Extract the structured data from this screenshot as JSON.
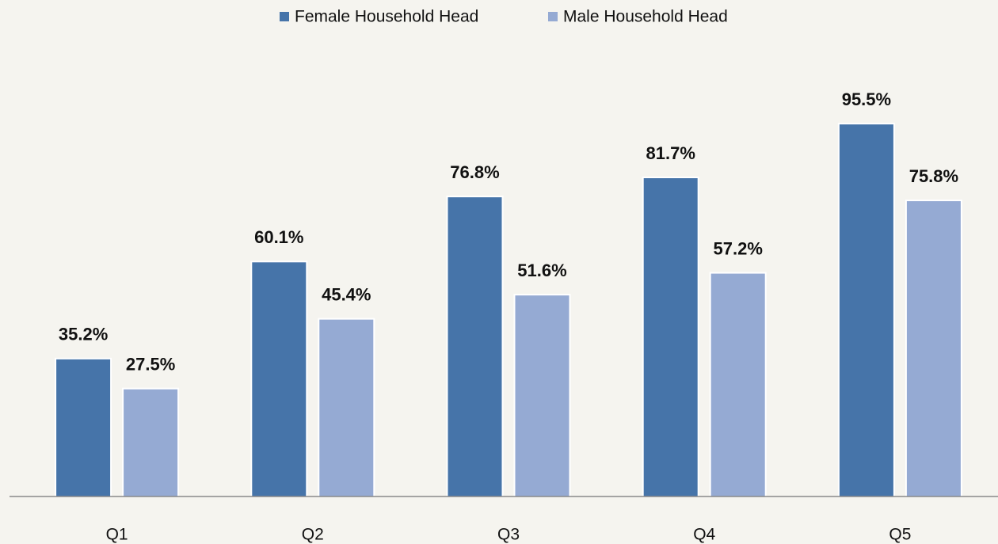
{
  "chart_data": {
    "type": "bar",
    "categories": [
      "Q1",
      "Q2",
      "Q3",
      "Q4",
      "Q5"
    ],
    "series": [
      {
        "name": "Female Household Head",
        "color": "#4674a9",
        "values": [
          35.2,
          60.1,
          76.8,
          81.7,
          95.5
        ],
        "value_labels": [
          "35.2%",
          "60.1%",
          "76.8%",
          "81.7%",
          "95.5%"
        ]
      },
      {
        "name": "Male Household Head",
        "color": "#95aad3",
        "values": [
          27.5,
          45.4,
          51.6,
          57.2,
          75.8
        ],
        "value_labels": [
          "27.5%",
          "45.4%",
          "51.6%",
          "57.2%",
          "75.8%"
        ]
      }
    ],
    "legend": "top"
  }
}
